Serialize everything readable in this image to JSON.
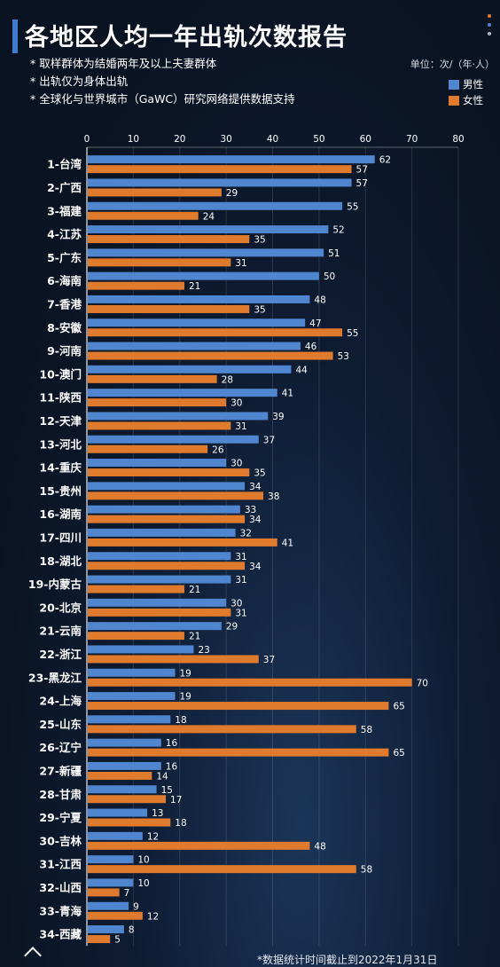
{
  "header": {
    "title": "各地区人均一年出轨次数报告",
    "notes": [
      "* 取样群体为结婚两年及以上夫妻群体",
      "* 出轨仅为身体出轨",
      "* 全球化与世界城市（GaWC）研究网络提供数据支持"
    ],
    "unit": "单位：次/（年·人）"
  },
  "footer": {
    "note": "*数据统计时间截止到2022年1月31日"
  },
  "colors": {
    "male": "#4f86cf",
    "female": "#e07a2c",
    "background": "#0b1526",
    "accent": "#3d7ad0"
  },
  "chart_data": {
    "type": "bar",
    "orientation": "horizontal",
    "title": "各地区人均一年出轨次数报告",
    "unit": "单位：次/（年·人）",
    "xlim": [
      0,
      80
    ],
    "xticks": [
      0,
      10,
      20,
      30,
      40,
      50,
      60,
      70,
      80
    ],
    "legend_position": "top-right",
    "categories": [
      "1-台湾",
      "2-广西",
      "3-福建",
      "4-江苏",
      "5-广东",
      "6-海南",
      "7-香港",
      "8-安徽",
      "9-河南",
      "10-澳门",
      "11-陕西",
      "12-天津",
      "13-河北",
      "14-重庆",
      "15-贵州",
      "16-湖南",
      "17-四川",
      "18-湖北",
      "19-内蒙古",
      "20-北京",
      "21-云南",
      "22-浙江",
      "23-黑龙江",
      "24-上海",
      "25-山东",
      "26-辽宁",
      "27-新疆",
      "28-甘肃",
      "29-宁夏",
      "30-吉林",
      "31-江西",
      "32-山西",
      "33-青海",
      "34-西藏"
    ],
    "series": [
      {
        "name": "男性",
        "values": [
          62,
          57,
          55,
          52,
          51,
          50,
          48,
          47,
          46,
          44,
          41,
          39,
          37,
          30,
          34,
          33,
          32,
          31,
          31,
          30,
          29,
          23,
          19,
          19,
          18,
          16,
          16,
          15,
          13,
          12,
          10,
          10,
          9,
          8
        ]
      },
      {
        "name": "女性",
        "values": [
          57,
          29,
          24,
          35,
          31,
          21,
          35,
          55,
          53,
          28,
          30,
          31,
          26,
          35,
          38,
          34,
          41,
          34,
          21,
          31,
          21,
          37,
          70,
          65,
          58,
          65,
          14,
          17,
          18,
          48,
          58,
          7,
          12,
          5
        ]
      }
    ]
  }
}
